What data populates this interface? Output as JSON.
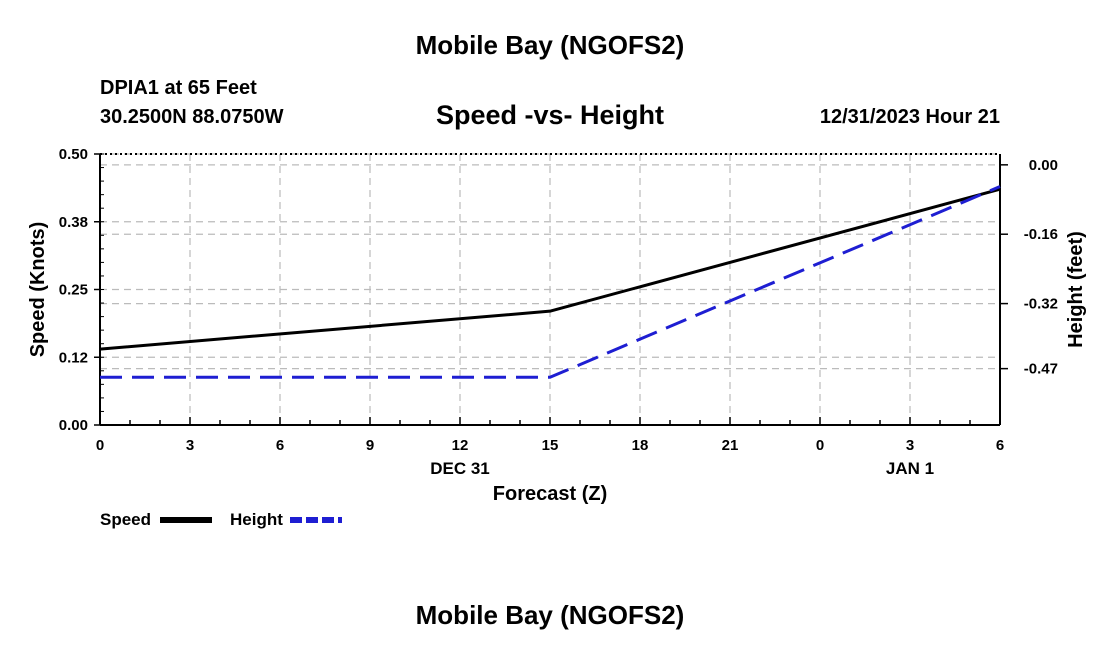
{
  "header": {
    "title": "Mobile Bay (NGOFS2)",
    "station": "DPIA1 at 65 Feet",
    "coords": "30.2500N  88.0750W",
    "subtitle": "Speed -vs- Height",
    "datetime": "12/31/2023 Hour 21"
  },
  "footer": {
    "title": "Mobile Bay (NGOFS2)"
  },
  "chart_data": {
    "type": "line",
    "title": "Speed -vs- Height",
    "xlabel": "Forecast (Z)",
    "ylabel": "Speed (Knots)",
    "y2label": "Height (feet)",
    "x_hours": [
      0,
      3,
      6,
      9,
      12,
      15,
      18,
      21,
      24,
      27,
      30
    ],
    "x_tick_labels": [
      "0",
      "3",
      "6",
      "9",
      "12",
      "15",
      "18",
      "21",
      "0",
      "3",
      "6"
    ],
    "x_date_labels": [
      {
        "x": 12,
        "label": "DEC 31"
      },
      {
        "x": 27,
        "label": "JAN 1"
      }
    ],
    "xlim": [
      0,
      30
    ],
    "ylim": [
      0,
      0.5
    ],
    "y_ticks": [
      0.0,
      0.125,
      0.25,
      0.375,
      0.5
    ],
    "y_tick_labels": [
      "0.00",
      "0.12",
      "0.25",
      "0.38",
      "0.50"
    ],
    "y2lim": [
      -0.6,
      0.025
    ],
    "y2_ticks": [
      0.0,
      -0.16,
      -0.32,
      -0.47
    ],
    "y2_tick_labels": [
      "0.00",
      "-0.16",
      "-0.32",
      "-0.47"
    ],
    "grid": true,
    "series": [
      {
        "name": "Speed",
        "axis": "left",
        "color": "#000000",
        "style": "solid",
        "x": [
          0,
          15,
          30
        ],
        "values": [
          0.14,
          0.21,
          0.435
        ]
      },
      {
        "name": "Height",
        "axis": "right",
        "color": "#1e1ed2",
        "style": "dashed",
        "x": [
          0,
          15,
          30
        ],
        "values": [
          -0.49,
          -0.49,
          -0.05
        ]
      }
    ],
    "legend": {
      "placement": "bottom-left",
      "items": [
        "Speed",
        "Height"
      ]
    }
  }
}
